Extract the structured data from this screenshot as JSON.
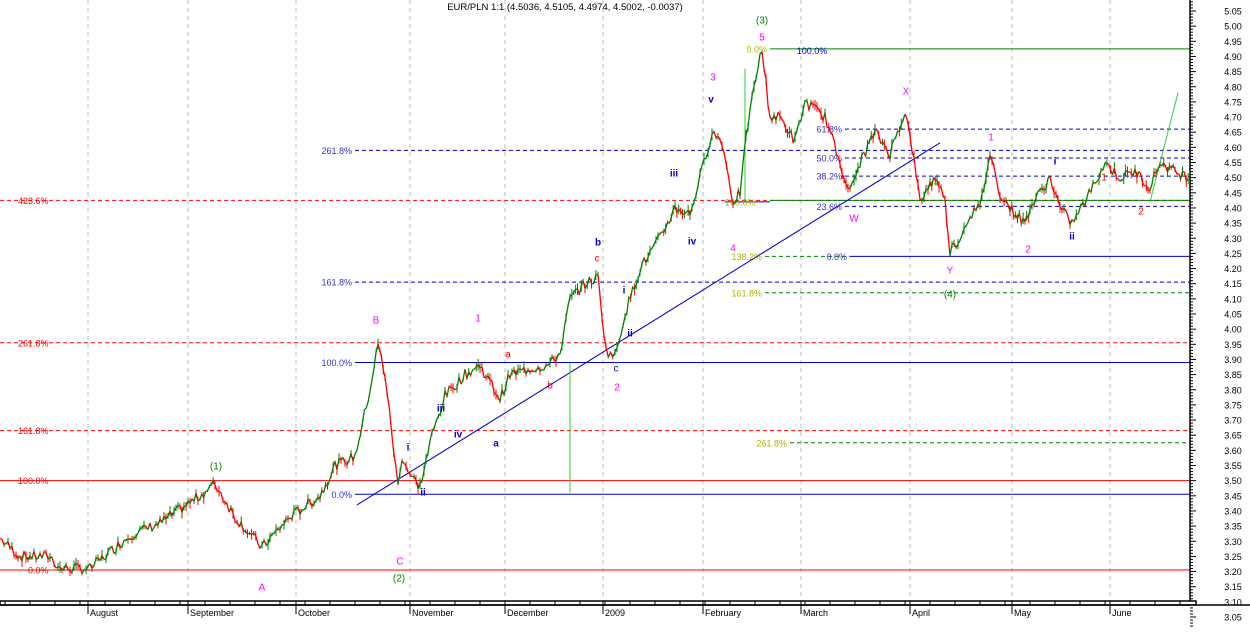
{
  "chart_data": {
    "type": "line",
    "title": "EUR/PLN 1:1 (4.5036, 4.5105, 4.4974, 4.5002, -0.0037)",
    "xlabel": "",
    "ylabel": "",
    "ylim": [
      3.02,
      5.08
    ],
    "x_unit": "trading day index",
    "xlim": [
      0,
      238
    ],
    "y_ticks": [
      "5.05",
      "5.00",
      "4.95",
      "4.90",
      "4.85",
      "4.80",
      "4.75",
      "4.70",
      "4.65",
      "4.60",
      "4.55",
      "4.50",
      "4.45",
      "4.40",
      "4.35",
      "4.30",
      "4.25",
      "4.20",
      "4.15",
      "4.10",
      "4.05",
      "4.00",
      "3.95",
      "3.90",
      "3.85",
      "3.80",
      "3.75",
      "3.70",
      "3.65",
      "3.60",
      "3.55",
      "3.50",
      "3.45",
      "3.40",
      "3.35",
      "3.30",
      "3.25",
      "3.20",
      "3.15",
      "3.10",
      "3.05"
    ],
    "months": [
      {
        "label": "August",
        "x": 17.6
      },
      {
        "label": "September",
        "x": 37.6
      },
      {
        "label": "October",
        "x": 59.2
      },
      {
        "label": "November",
        "x": 82
      },
      {
        "label": "December",
        "x": 101
      },
      {
        "label": "2009",
        "x": 120.6
      },
      {
        "label": "February",
        "x": 140.6
      },
      {
        "label": "March",
        "x": 160.2
      },
      {
        "label": "April",
        "x": 182
      },
      {
        "label": "May",
        "x": 202.4
      },
      {
        "label": "June",
        "x": 222
      }
    ],
    "price_pivots": [
      [
        0,
        3.31
      ],
      [
        4,
        3.25
      ],
      [
        10,
        3.25
      ],
      [
        12,
        3.21
      ],
      [
        18,
        3.21
      ],
      [
        26,
        3.32
      ],
      [
        32,
        3.36
      ],
      [
        40,
        3.45
      ],
      [
        43,
        3.49
      ],
      [
        47,
        3.38
      ],
      [
        52.4,
        3.28
      ],
      [
        58,
        3.38
      ],
      [
        64,
        3.45
      ],
      [
        67,
        3.55
      ],
      [
        71,
        3.58
      ],
      [
        74,
        3.8
      ],
      [
        75.6,
        3.95
      ],
      [
        77,
        3.85
      ],
      [
        79.6,
        3.48
      ],
      [
        80.4,
        3.58
      ],
      [
        82,
        3.52
      ],
      [
        84,
        3.48
      ],
      [
        86.4,
        3.65
      ],
      [
        89,
        3.78
      ],
      [
        93,
        3.85
      ],
      [
        96,
        3.88
      ],
      [
        100,
        3.77
      ],
      [
        102,
        3.85
      ],
      [
        106,
        3.87
      ],
      [
        109.6,
        3.88
      ],
      [
        112,
        3.92
      ],
      [
        114,
        4.1
      ],
      [
        117,
        4.15
      ],
      [
        119.6,
        4.17
      ],
      [
        121.2,
        3.93
      ],
      [
        123,
        3.91
      ],
      [
        125,
        4.05
      ],
      [
        128,
        4.2
      ],
      [
        132,
        4.3
      ],
      [
        135,
        4.4
      ],
      [
        138,
        4.38
      ],
      [
        140,
        4.5
      ],
      [
        142.4,
        4.65
      ],
      [
        144.4,
        4.62
      ],
      [
        146.6,
        4.42
      ],
      [
        148,
        4.45
      ],
      [
        149.6,
        4.68
      ],
      [
        151.6,
        4.87
      ],
      [
        152.4,
        4.92
      ],
      [
        154,
        4.7
      ],
      [
        156,
        4.7
      ],
      [
        159,
        4.62
      ],
      [
        161,
        4.75
      ],
      [
        165,
        4.7
      ],
      [
        168,
        4.55
      ],
      [
        170,
        4.45
      ],
      [
        172,
        4.55
      ],
      [
        175,
        4.65
      ],
      [
        178,
        4.58
      ],
      [
        181,
        4.72
      ],
      [
        182.4,
        4.6
      ],
      [
        184,
        4.42
      ],
      [
        186,
        4.48
      ],
      [
        187.4,
        4.5
      ],
      [
        189,
        4.42
      ],
      [
        190,
        4.26
      ],
      [
        192,
        4.3
      ],
      [
        194,
        4.38
      ],
      [
        196,
        4.4
      ],
      [
        198,
        4.58
      ],
      [
        200,
        4.45
      ],
      [
        202,
        4.4
      ],
      [
        205,
        4.35
      ],
      [
        206,
        4.4
      ],
      [
        210,
        4.5
      ],
      [
        212,
        4.4
      ],
      [
        214.4,
        4.35
      ],
      [
        217,
        4.42
      ],
      [
        221,
        4.55
      ],
      [
        224,
        4.5
      ],
      [
        227,
        4.52
      ],
      [
        230,
        4.47
      ],
      [
        232,
        4.55
      ],
      [
        235,
        4.52
      ],
      [
        238,
        4.5
      ]
    ],
    "fib_levels": [
      {
        "label": "100.0%",
        "price": 3.5,
        "color": "#ff0000",
        "style": "solid",
        "x0": 0,
        "x1": 238,
        "label_side": "inside"
      },
      {
        "label": "161.8%",
        "price": 3.665,
        "color": "#ff0000",
        "style": "dashed",
        "x0": 0,
        "x1": 238,
        "label_side": "inside"
      },
      {
        "label": "261.8%",
        "price": 3.955,
        "color": "#ff0000",
        "style": "dashed",
        "x0": 0,
        "x1": 238,
        "label_side": "inside"
      },
      {
        "label": "423.6%",
        "price": 4.425,
        "color": "#ff0000",
        "style": "dashed",
        "x0": 0,
        "x1": 238,
        "label_side": "inside"
      },
      {
        "label": "0.0%",
        "price": 3.205,
        "color": "#ff0000",
        "style": "solid",
        "x0": 0,
        "x1": 238,
        "label_side": "inside"
      },
      {
        "label": "0.0%",
        "price": 3.455,
        "color": "#0000cc",
        "style": "solid",
        "x0": 71,
        "x1": 238,
        "label_side": "left"
      },
      {
        "label": "100.0%",
        "price": 3.89,
        "color": "#0000cc",
        "style": "solid",
        "x0": 71,
        "x1": 238,
        "label_side": "left"
      },
      {
        "label": "161.8%",
        "price": 4.155,
        "color": "#0000cc",
        "style": "dashed",
        "x0": 71,
        "x1": 238,
        "label_side": "left"
      },
      {
        "label": "261.8%",
        "price": 4.59,
        "color": "#0000cc",
        "style": "dashed",
        "x0": 71,
        "x1": 238,
        "label_side": "left"
      },
      {
        "label": "61.8%",
        "price": 4.66,
        "color": "#0000cc",
        "style": "dashed",
        "x0": 169,
        "x1": 238,
        "label_side": "left"
      },
      {
        "label": "50.0%",
        "price": 4.565,
        "color": "#0000cc",
        "style": "dashed",
        "x0": 169,
        "x1": 238,
        "label_side": "left"
      },
      {
        "label": "38.2%",
        "price": 4.505,
        "color": "#0000cc",
        "style": "dashed",
        "x0": 169,
        "x1": 238,
        "label_side": "left"
      },
      {
        "label": "23.6%",
        "price": 4.405,
        "color": "#0000cc",
        "style": "dashed",
        "x0": 169,
        "x1": 238,
        "label_side": "left"
      },
      {
        "label": "0.0%",
        "price": 4.925,
        "color": "#008000",
        "style": "solid",
        "x0": 154,
        "x1": 238,
        "label_side": "left"
      },
      {
        "label": "138.2%",
        "price": 4.24,
        "color": "#008000",
        "style": "dashed",
        "x0": 153,
        "x1": 170,
        "label_side": "left"
      },
      {
        "label": "0.0%",
        "price": 4.24,
        "color": "#0000cc",
        "style": "solid",
        "x0": 170,
        "x1": 238,
        "label_side": "left"
      },
      {
        "label": "161.8%",
        "price": 4.12,
        "color": "#008000",
        "style": "dashed",
        "x0": 153,
        "x1": 238,
        "label_side": "left"
      },
      {
        "label": "261.8%",
        "price": 3.625,
        "color": "#008000",
        "style": "dashed",
        "x0": 158,
        "x1": 238,
        "label_side": "left"
      },
      {
        "label": "100.0%",
        "price": 4.42,
        "color": "#0000cc",
        "style": "solid",
        "x0": 145,
        "x1": 154,
        "label_side": "inside"
      },
      {
        "label": "",
        "price": 4.425,
        "color": "#008000",
        "style": "solid",
        "x0": 154,
        "x1": 238,
        "label_side": "none"
      }
    ],
    "trendlines": [
      {
        "color": "#0000cc",
        "from": [
          71.4,
          3.42
        ],
        "to": [
          188,
          4.615
        ]
      },
      {
        "color": "#33cc33",
        "from": [
          114,
          3.89
        ],
        "to": [
          114,
          3.46
        ]
      },
      {
        "color": "#33cc33",
        "from": [
          149,
          4.86
        ],
        "to": [
          149,
          4.42
        ]
      },
      {
        "color": "#33cc33",
        "from": [
          230,
          4.42
        ],
        "to": [
          235.6,
          4.78
        ]
      }
    ],
    "annotations": [
      {
        "text": "100.0%",
        "x": 162.4,
        "price": 4.92,
        "color": "#0000cc"
      },
      {
        "text": "(1)",
        "x": 43.2,
        "price": 3.548,
        "color": "#008000"
      },
      {
        "text": "A",
        "x": 52.4,
        "price": 3.149,
        "color": "#ff00ff"
      },
      {
        "text": "B",
        "x": 75.2,
        "price": 4.03,
        "color": "#ff00ff"
      },
      {
        "text": "C",
        "x": 80,
        "price": 3.235,
        "color": "#ff00ff"
      },
      {
        "text": "(2)",
        "x": 79.8,
        "price": 3.179,
        "color": "#008000"
      },
      {
        "text": "i",
        "x": 81.6,
        "price": 3.611,
        "color": "#0000cc"
      },
      {
        "text": "ii",
        "x": 84.6,
        "price": 3.463,
        "color": "#0000cc"
      },
      {
        "text": "iii",
        "x": 88.2,
        "price": 3.74,
        "color": "#0000cc"
      },
      {
        "text": "iv",
        "x": 91.6,
        "price": 3.654,
        "color": "#0000cc"
      },
      {
        "text": "a",
        "x": 99.2,
        "price": 3.624,
        "color": "#0000cc"
      },
      {
        "text": "1",
        "x": 95.6,
        "price": 4.037,
        "color": "#ff00ff"
      },
      {
        "text": "a",
        "x": 101.6,
        "price": 3.918,
        "color": "#ff0000"
      },
      {
        "text": "b",
        "x": 110,
        "price": 3.816,
        "color": "#ff0000"
      },
      {
        "text": "b",
        "x": 119.6,
        "price": 4.288,
        "color": "#0000cc"
      },
      {
        "text": "c",
        "x": 119.4,
        "price": 4.235,
        "color": "#ff0000"
      },
      {
        "text": "i",
        "x": 124.8,
        "price": 4.129,
        "color": "#0000cc"
      },
      {
        "text": "ii",
        "x": 126,
        "price": 3.987,
        "color": "#0000cc"
      },
      {
        "text": "c",
        "x": 123.2,
        "price": 3.872,
        "color": "#0000cc"
      },
      {
        "text": "2",
        "x": 123.4,
        "price": 3.809,
        "color": "#ff00ff"
      },
      {
        "text": "iii",
        "x": 134.8,
        "price": 4.515,
        "color": "#0000cc"
      },
      {
        "text": "iv",
        "x": 138.4,
        "price": 4.291,
        "color": "#0000cc"
      },
      {
        "text": "3",
        "x": 142.6,
        "price": 4.832,
        "color": "#ff00ff"
      },
      {
        "text": "v",
        "x": 142.2,
        "price": 4.76,
        "color": "#0000cc"
      },
      {
        "text": "4",
        "x": 146.6,
        "price": 4.268,
        "color": "#ff00ff"
      },
      {
        "text": "(3)",
        "x": 152.4,
        "price": 5.02,
        "color": "#008000"
      },
      {
        "text": "5",
        "x": 152.4,
        "price": 4.964,
        "color": "#ff00ff"
      },
      {
        "text": "X",
        "x": 181.2,
        "price": 4.786,
        "color": "#ff00ff"
      },
      {
        "text": "W",
        "x": 170.8,
        "price": 4.367,
        "color": "#ff00ff"
      },
      {
        "text": "Y",
        "x": 190,
        "price": 4.195,
        "color": "#ff00ff"
      },
      {
        "text": "(4)",
        "x": 190,
        "price": 4.116,
        "color": "#008000"
      },
      {
        "text": "1",
        "x": 198.2,
        "price": 4.634,
        "color": "#ff00ff"
      },
      {
        "text": "2",
        "x": 205.6,
        "price": 4.265,
        "color": "#ff00ff"
      },
      {
        "text": "i",
        "x": 211,
        "price": 4.555,
        "color": "#0000cc"
      },
      {
        "text": "ii",
        "x": 214.4,
        "price": 4.307,
        "color": "#0000cc"
      },
      {
        "text": "1",
        "x": 220.8,
        "price": 4.502,
        "color": "#ff0000"
      },
      {
        "text": "2",
        "x": 228.2,
        "price": 4.39,
        "color": "#ff0000"
      }
    ],
    "colors": {
      "up": "#008000",
      "down": "#ff0000",
      "fib_label_green": "#b0b000",
      "grid": "#bbbbbb"
    }
  }
}
